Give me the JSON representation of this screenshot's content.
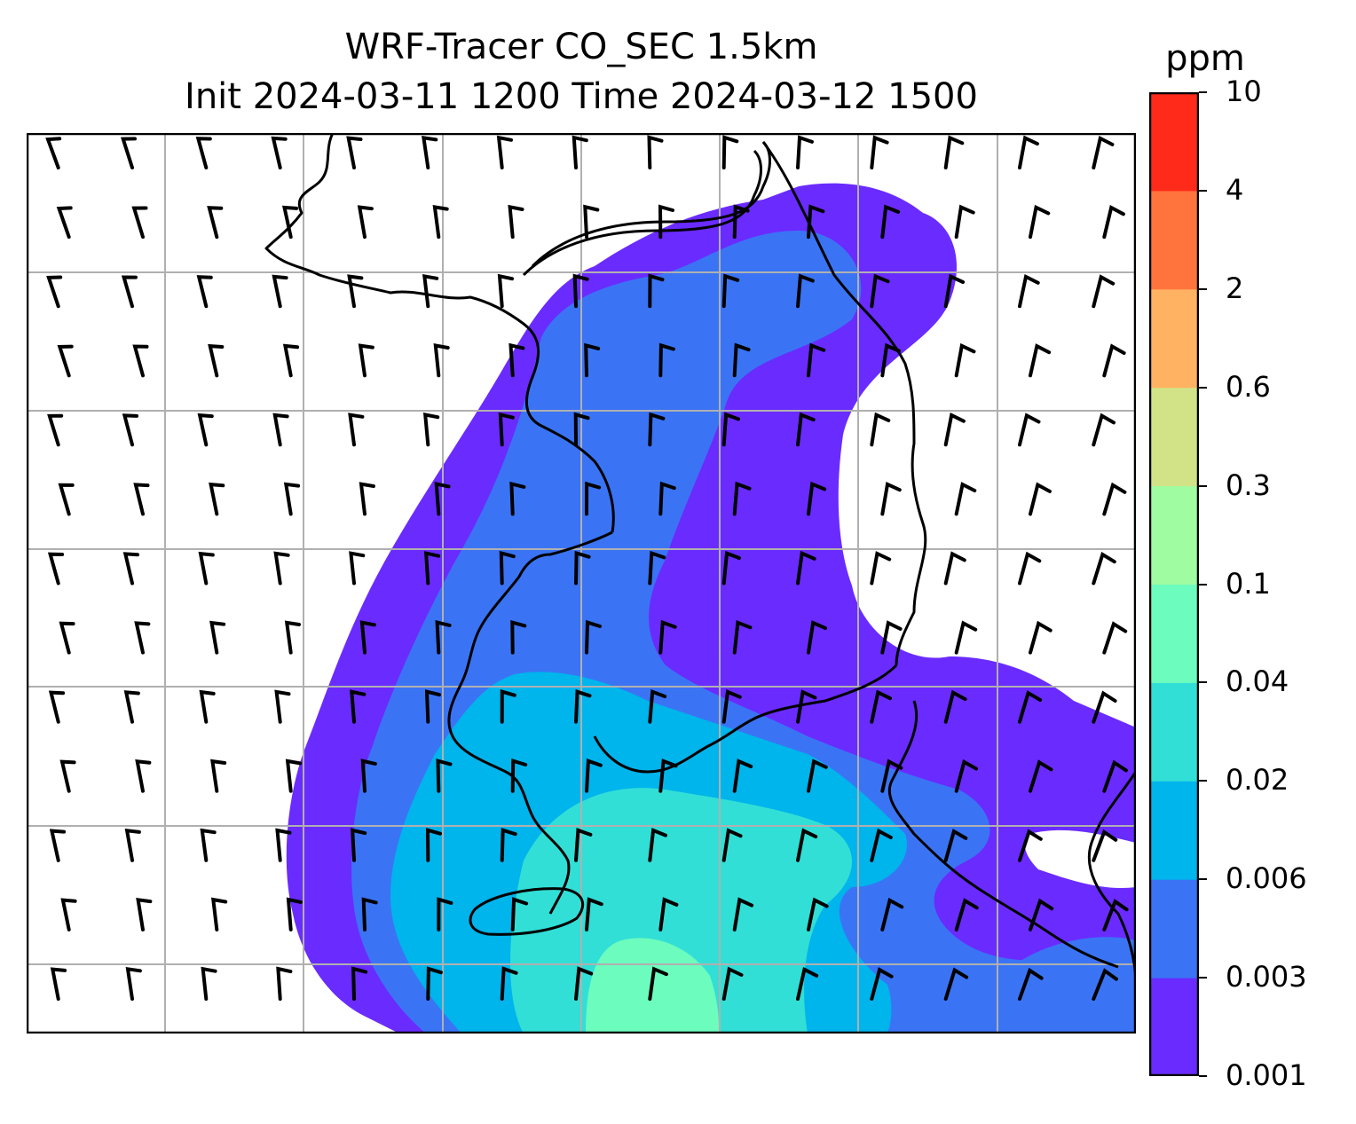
{
  "title": {
    "line1": "WRF-Tracer CO_SEC 1.5km",
    "line2": "Init 2024-03-11 1200 Time 2024-03-12 1500"
  },
  "colorbar": {
    "units": "ppm",
    "levels": [
      "0.001",
      "0.003",
      "0.006",
      "0.02",
      "0.04",
      "0.1",
      "0.3",
      "0.6",
      "2",
      "4",
      "10"
    ],
    "colors": [
      "#6a2bff",
      "#3a74f5",
      "#00b4ec",
      "#31dfd6",
      "#6cfcbe",
      "#9ffca0",
      "#d1e386",
      "#ffb262",
      "#ff733c",
      "#ff2a1a"
    ]
  },
  "map": {
    "gridlines": true,
    "features": [
      "coastlines",
      "wind-barbs",
      "filled-contours"
    ],
    "colors": {
      "grid": "#b0b0b0",
      "coast": "#000000",
      "frame": "#000000"
    }
  }
}
